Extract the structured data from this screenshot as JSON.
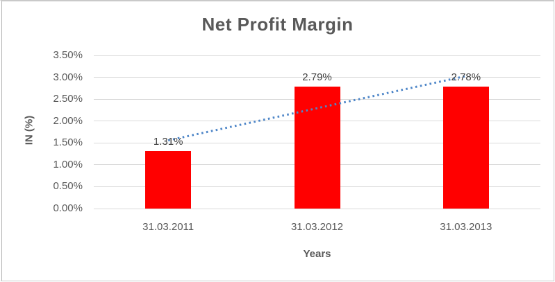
{
  "chart": {
    "title": "Net Profit Margin",
    "y_axis_title": "IN (%)",
    "x_axis_title": "Years",
    "colors": {
      "bar": "#ff0000",
      "trendline": "#4e86c8",
      "gridline": "#d9d9d9",
      "axis_text": "#595959",
      "title_text": "#595959",
      "data_label_text": "#404040",
      "frame_border": "#c9c9c9"
    }
  },
  "chart_data": {
    "type": "bar",
    "title": "Net Profit Margin",
    "xlabel": "Years",
    "ylabel": "IN (%)",
    "categories": [
      "31.03.2011",
      "31.03.2012",
      "31.03.2013"
    ],
    "values": [
      1.31,
      2.79,
      2.78
    ],
    "data_labels": [
      "1.31%",
      "2.79%",
      "2.78%"
    ],
    "ylim": [
      0,
      3.5
    ],
    "ytick_step": 0.5,
    "ytick_labels": [
      "0.00%",
      "0.50%",
      "1.00%",
      "1.50%",
      "2.00%",
      "2.50%",
      "3.00%",
      "3.50%"
    ],
    "grid": true,
    "legend": false,
    "trendline": {
      "type": "linear",
      "style": "dotted"
    }
  }
}
